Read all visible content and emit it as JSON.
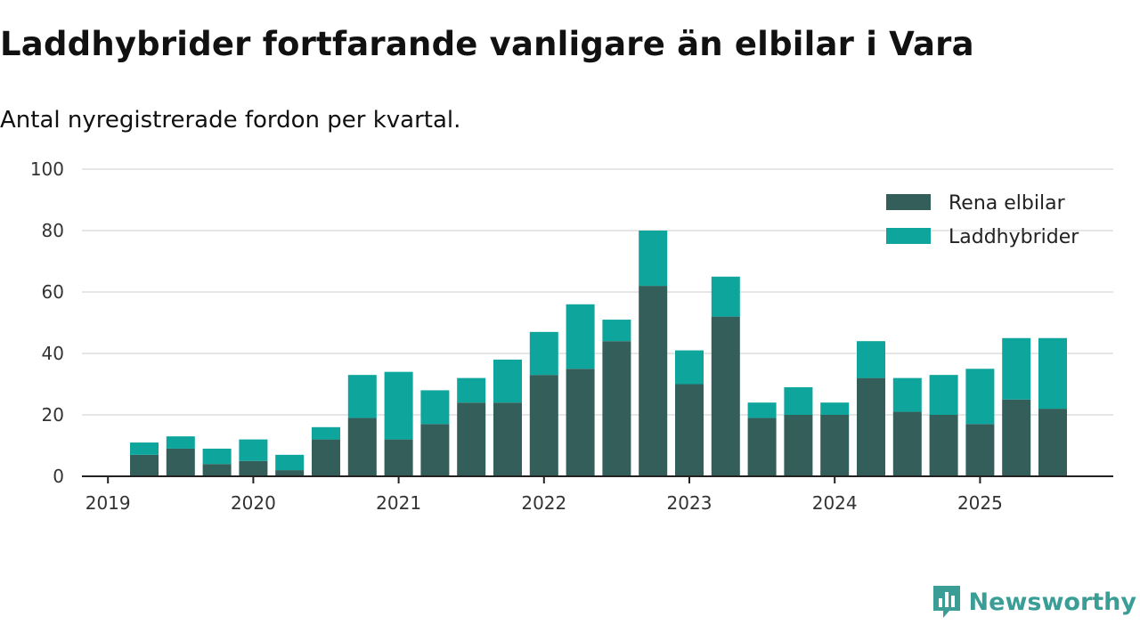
{
  "header": {
    "title": "Laddhybrider fortfarande vanligare än elbilar i Vara",
    "subtitle": "Antal nyregistrerade fordon per kvartal."
  },
  "brand": {
    "name": "Newsworthy",
    "logo_icon": "newsworthy-logo-icon"
  },
  "colors": {
    "rena_elbilar": "#335e5a",
    "laddhybrider": "#0ea59d",
    "grid": "#dddddd",
    "axis": "#222222",
    "brand": "#3a9e96"
  },
  "chart_data": {
    "type": "bar",
    "stacked": true,
    "title": "Laddhybrider fortfarande vanligare än elbilar i Vara",
    "subtitle": "Antal nyregistrerade fordon per kvartal.",
    "xlabel": "",
    "ylabel": "",
    "ylim": [
      0,
      100
    ],
    "yticks": [
      0,
      20,
      40,
      60,
      80,
      100
    ],
    "xticks": [
      "2019",
      "2020",
      "2021",
      "2022",
      "2023",
      "2024",
      "2025"
    ],
    "legend_position": "top-right",
    "categories": [
      "2019 Q2",
      "2019 Q3",
      "2019 Q4",
      "2020 Q1",
      "2020 Q2",
      "2020 Q3",
      "2020 Q4",
      "2021 Q1",
      "2021 Q2",
      "2021 Q3",
      "2021 Q4",
      "2022 Q1",
      "2022 Q2",
      "2022 Q3",
      "2022 Q4",
      "2023 Q1",
      "2023 Q2",
      "2023 Q3",
      "2023 Q4",
      "2024 Q1",
      "2024 Q2",
      "2024 Q3",
      "2024 Q4",
      "2025 Q1",
      "2025 Q2",
      "2025 Q3"
    ],
    "series": [
      {
        "name": "Rena elbilar",
        "values": [
          7,
          9,
          4,
          5,
          2,
          12,
          19,
          12,
          17,
          24,
          24,
          33,
          35,
          44,
          62,
          30,
          52,
          19,
          20,
          20,
          32,
          21,
          20,
          17,
          25,
          22
        ]
      },
      {
        "name": "Laddhybrider",
        "values": [
          4,
          4,
          5,
          7,
          5,
          4,
          14,
          22,
          11,
          8,
          14,
          14,
          21,
          7,
          18,
          11,
          13,
          5,
          9,
          4,
          12,
          11,
          13,
          18,
          20,
          23
        ]
      }
    ]
  }
}
